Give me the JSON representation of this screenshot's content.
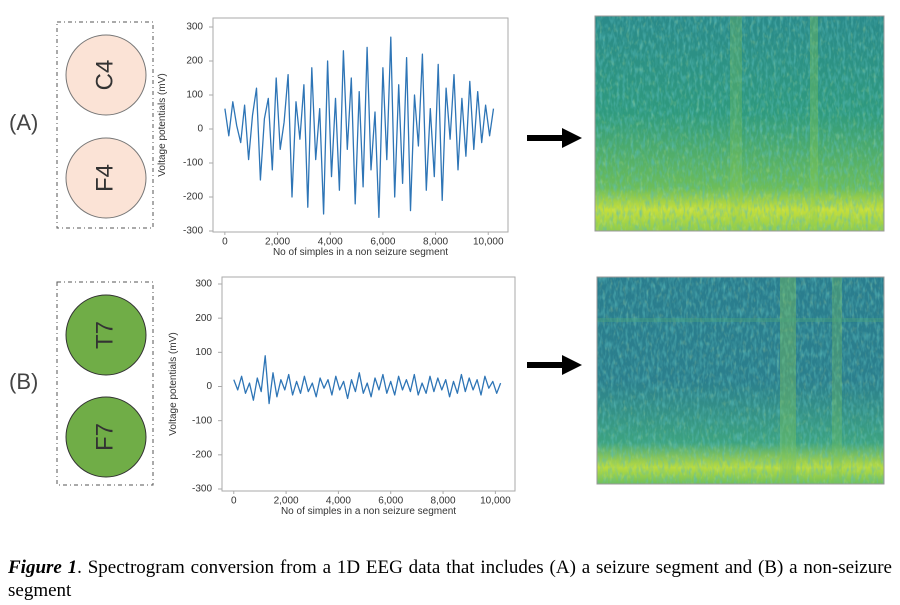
{
  "figure": {
    "panels": [
      {
        "label": "(A)",
        "electrodes": [
          "C4",
          "F4"
        ]
      },
      {
        "label": "(B)",
        "electrodes": [
          "T7",
          "F7"
        ]
      }
    ],
    "caption": {
      "label": "Figure 1",
      "text": ". Spectrogram conversion from a 1D EEG data that includes (A) a seizure segment and (B) a non-seizure segment"
    }
  },
  "chart_data": [
    {
      "type": "line",
      "ylabel": "Voltage potentials (mV)",
      "xlabel": "No of simples in a non seizure segment",
      "color": "#2e75b6",
      "x": [
        0,
        150,
        300,
        450,
        600,
        750,
        900,
        1050,
        1200,
        1350,
        1500,
        1650,
        1800,
        1950,
        2100,
        2250,
        2400,
        2550,
        2700,
        2850,
        3000,
        3150,
        3300,
        3450,
        3600,
        3750,
        3900,
        4050,
        4200,
        4350,
        4500,
        4650,
        4800,
        4950,
        5100,
        5250,
        5400,
        5550,
        5700,
        5850,
        6000,
        6150,
        6300,
        6450,
        6600,
        6750,
        6900,
        7050,
        7200,
        7350,
        7500,
        7650,
        7800,
        7950,
        8100,
        8250,
        8400,
        8550,
        8700,
        8850,
        9000,
        9150,
        9300,
        9450,
        9600,
        9750,
        9900,
        10050,
        10200
      ],
      "values": [
        60,
        -20,
        80,
        10,
        -40,
        70,
        -90,
        40,
        120,
        -150,
        30,
        90,
        -120,
        150,
        -60,
        20,
        160,
        -200,
        80,
        -30,
        130,
        -230,
        180,
        -90,
        60,
        -250,
        200,
        -140,
        90,
        -180,
        230,
        -60,
        150,
        -220,
        110,
        -170,
        240,
        -120,
        50,
        -260,
        180,
        -90,
        270,
        -200,
        130,
        -160,
        210,
        -240,
        100,
        -50,
        220,
        -180,
        60,
        -140,
        190,
        -210,
        120,
        -30,
        160,
        -120,
        90,
        -80,
        140,
        -60,
        110,
        -40,
        70,
        -20,
        60
      ],
      "xlim": [
        -450,
        10750
      ],
      "ylim": [
        -300,
        300
      ],
      "xticks": [
        0,
        {
          "value": 2000,
          "label": "2,000"
        },
        {
          "value": 4000,
          "label": "4,000"
        },
        {
          "value": 6000,
          "label": "6,000"
        },
        {
          "value": 8000,
          "label": "8,000"
        },
        {
          "value": 10000,
          "label": "10,000"
        }
      ],
      "yticks": [
        300,
        200,
        100,
        0,
        -100,
        -200,
        -300
      ]
    },
    {
      "type": "line",
      "ylabel": "Voltage potentials (mV)",
      "xlabel": "No of simples in a non seizure segment",
      "color": "#2e75b6",
      "x": [
        0,
        150,
        300,
        450,
        600,
        750,
        900,
        1050,
        1200,
        1350,
        1500,
        1650,
        1800,
        1950,
        2100,
        2250,
        2400,
        2550,
        2700,
        2850,
        3000,
        3150,
        3300,
        3450,
        3600,
        3750,
        3900,
        4050,
        4200,
        4350,
        4500,
        4650,
        4800,
        4950,
        5100,
        5250,
        5400,
        5550,
        5700,
        5850,
        6000,
        6150,
        6300,
        6450,
        6600,
        6750,
        6900,
        7050,
        7200,
        7350,
        7500,
        7650,
        7800,
        7950,
        8100,
        8250,
        8400,
        8550,
        8700,
        8850,
        9000,
        9150,
        9300,
        9450,
        9600,
        9750,
        9900,
        10050,
        10200
      ],
      "values": [
        20,
        -10,
        30,
        -20,
        10,
        -40,
        25,
        -15,
        90,
        -50,
        40,
        -30,
        20,
        -10,
        35,
        -25,
        15,
        -20,
        30,
        -15,
        10,
        -30,
        25,
        -5,
        20,
        -25,
        30,
        -10,
        15,
        -35,
        20,
        -15,
        40,
        -20,
        10,
        -30,
        25,
        -10,
        35,
        -20,
        15,
        -25,
        30,
        -10,
        20,
        -15,
        35,
        -25,
        10,
        -20,
        30,
        -15,
        25,
        -10,
        20,
        -30,
        15,
        -20,
        35,
        -15,
        25,
        -10,
        20,
        -25,
        30,
        -5,
        15,
        -20,
        10
      ],
      "xlim": [
        -450,
        10750
      ],
      "ylim": [
        -300,
        300
      ],
      "xticks": [
        0,
        {
          "value": 2000,
          "label": "2,000"
        },
        {
          "value": 4000,
          "label": "4,000"
        },
        {
          "value": 6000,
          "label": "6,000"
        },
        {
          "value": 8000,
          "label": "8,000"
        },
        {
          "value": 10000,
          "label": "10,000"
        }
      ],
      "yticks": [
        300,
        200,
        100,
        0,
        -100,
        -200,
        -300
      ]
    }
  ]
}
